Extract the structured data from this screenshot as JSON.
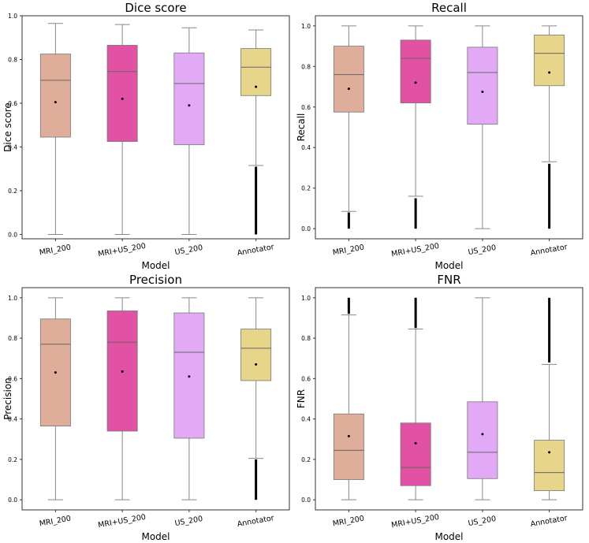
{
  "chart_data": [
    {
      "type": "box",
      "title": "Dice score",
      "xlabel": "Model",
      "ylabel": "Dice score",
      "ylim": [
        -0.02,
        1.0
      ],
      "yticks": [
        "0.0",
        "0.2",
        "0.4",
        "0.6",
        "0.8",
        "1.0"
      ],
      "categories": [
        "MRI_200",
        "MRI+US_200",
        "US_200",
        "Annotator"
      ],
      "boxes": [
        {
          "min": 0.0,
          "q1": 0.445,
          "median": 0.705,
          "q3": 0.825,
          "max": 0.965,
          "mean": 0.605,
          "outliers": []
        },
        {
          "min": 0.0,
          "q1": 0.425,
          "median": 0.745,
          "q3": 0.865,
          "max": 0.96,
          "mean": 0.62,
          "outliers": []
        },
        {
          "min": 0.0,
          "q1": 0.41,
          "median": 0.69,
          "q3": 0.83,
          "max": 0.945,
          "mean": 0.59,
          "outliers": []
        },
        {
          "min": 0.315,
          "q1": 0.635,
          "median": 0.765,
          "q3": 0.85,
          "max": 0.935,
          "mean": 0.675,
          "outliers_range": [
            0.0,
            0.31
          ]
        }
      ]
    },
    {
      "type": "box",
      "title": "Recall",
      "xlabel": "Model",
      "ylabel": "Recall",
      "ylim": [
        -0.05,
        1.05
      ],
      "yticks": [
        "0.0",
        "0.2",
        "0.4",
        "0.6",
        "0.8",
        "1.0"
      ],
      "categories": [
        "MRI_200",
        "MRI+US_200",
        "US_200",
        "Annotator"
      ],
      "boxes": [
        {
          "min": 0.085,
          "q1": 0.575,
          "median": 0.76,
          "q3": 0.9,
          "max": 1.0,
          "mean": 0.69,
          "outliers_range": [
            0.0,
            0.08
          ]
        },
        {
          "min": 0.16,
          "q1": 0.62,
          "median": 0.84,
          "q3": 0.93,
          "max": 1.0,
          "mean": 0.72,
          "outliers_range": [
            0.0,
            0.15
          ]
        },
        {
          "min": 0.0,
          "q1": 0.515,
          "median": 0.77,
          "q3": 0.895,
          "max": 1.0,
          "mean": 0.675,
          "outliers": []
        },
        {
          "min": 0.33,
          "q1": 0.705,
          "median": 0.865,
          "q3": 0.955,
          "max": 1.0,
          "mean": 0.77,
          "outliers_range": [
            0.0,
            0.32
          ]
        }
      ]
    },
    {
      "type": "box",
      "title": "Precision",
      "xlabel": "Model",
      "ylabel": "Precision",
      "ylim": [
        -0.05,
        1.05
      ],
      "yticks": [
        "0.0",
        "0.2",
        "0.4",
        "0.6",
        "0.8",
        "1.0"
      ],
      "categories": [
        "MRI_200",
        "MRI+US_200",
        "US_200",
        "Annotator"
      ],
      "boxes": [
        {
          "min": 0.0,
          "q1": 0.365,
          "median": 0.77,
          "q3": 0.895,
          "max": 1.0,
          "mean": 0.63,
          "outliers": []
        },
        {
          "min": 0.0,
          "q1": 0.34,
          "median": 0.78,
          "q3": 0.935,
          "max": 1.0,
          "mean": 0.635,
          "outliers": []
        },
        {
          "min": 0.0,
          "q1": 0.305,
          "median": 0.73,
          "q3": 0.925,
          "max": 1.0,
          "mean": 0.61,
          "outliers": []
        },
        {
          "min": 0.205,
          "q1": 0.59,
          "median": 0.75,
          "q3": 0.845,
          "max": 1.0,
          "mean": 0.67,
          "outliers_range": [
            0.0,
            0.2
          ]
        }
      ]
    },
    {
      "type": "box",
      "title": "FNR",
      "xlabel": "Model",
      "ylabel": "FNR",
      "ylim": [
        -0.05,
        1.05
      ],
      "yticks": [
        "0.0",
        "0.2",
        "0.4",
        "0.6",
        "0.8",
        "1.0"
      ],
      "categories": [
        "MRI_200",
        "MRI+US_200",
        "US_200",
        "Annotator"
      ],
      "boxes": [
        {
          "min": 0.0,
          "q1": 0.1,
          "median": 0.245,
          "q3": 0.425,
          "max": 0.915,
          "mean": 0.315,
          "outliers_range": [
            0.92,
            1.0
          ]
        },
        {
          "min": 0.0,
          "q1": 0.07,
          "median": 0.16,
          "q3": 0.38,
          "max": 0.845,
          "mean": 0.28,
          "outliers_range": [
            0.85,
            1.0
          ]
        },
        {
          "min": 0.0,
          "q1": 0.105,
          "median": 0.235,
          "q3": 0.485,
          "max": 1.0,
          "mean": 0.325,
          "outliers": []
        },
        {
          "min": 0.0,
          "q1": 0.045,
          "median": 0.135,
          "q3": 0.295,
          "max": 0.67,
          "mean": 0.235,
          "outliers_range": [
            0.68,
            1.0
          ]
        }
      ]
    }
  ],
  "colors": {
    "boxes": [
      "#dfae9b",
      "#e252a4",
      "#e2aaf6",
      "#e7d58a"
    ],
    "axis": "#333333",
    "whisker": "#888888"
  }
}
